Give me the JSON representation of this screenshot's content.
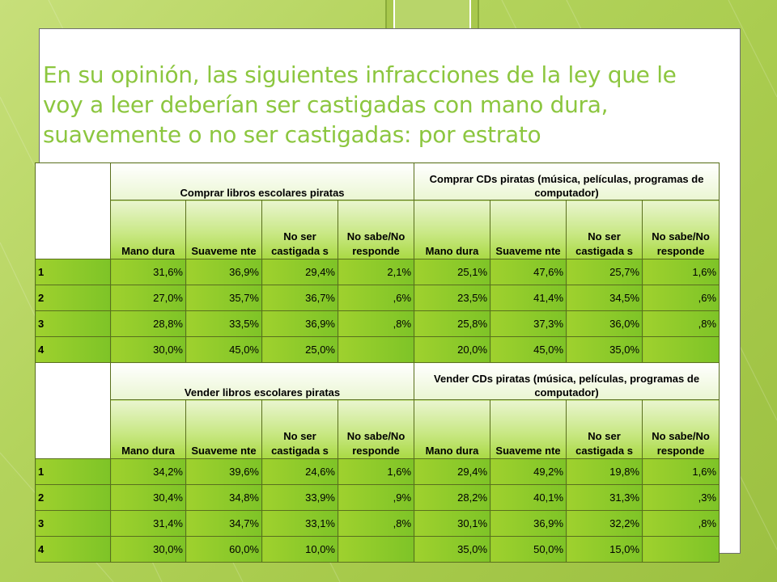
{
  "title_lines": [
    "En su opinión, las siguientes infracciones de la ley que le",
    "voy a leer deberían ser castigadas con mano dura,",
    "suavemente o no ser castigadas: por estrato"
  ],
  "colors": {
    "title": "#8cc63f",
    "row_fill": "#8cc82a",
    "slide_bg": "#ffffff",
    "page_bg": "#b3d35c"
  },
  "table1": {
    "group_a": "Comprar libros escolares piratas",
    "group_b": "Comprar CDs piratas (música, películas, programas de computador)",
    "cols": [
      "Mano dura",
      "Suaveme nte",
      "No ser castigada s",
      "No sabe/No responde",
      "Mano dura",
      "Suaveme nte",
      "No ser castigada s",
      "No sabe/No responde"
    ],
    "rows": [
      {
        "label": "1",
        "v": [
          "31,6%",
          "36,9%",
          "29,4%",
          "2,1%",
          "25,1%",
          "47,6%",
          "25,7%",
          "1,6%"
        ]
      },
      {
        "label": "2",
        "v": [
          "27,0%",
          "35,7%",
          "36,7%",
          ",6%",
          "23,5%",
          "41,4%",
          "34,5%",
          ",6%"
        ]
      },
      {
        "label": "3",
        "v": [
          "28,8%",
          "33,5%",
          "36,9%",
          ",8%",
          "25,8%",
          "37,3%",
          "36,0%",
          ",8%"
        ]
      },
      {
        "label": "4",
        "v": [
          "30,0%",
          "45,0%",
          "25,0%",
          "",
          "20,0%",
          "45,0%",
          "35,0%",
          ""
        ]
      }
    ]
  },
  "table2": {
    "group_a": "Vender libros escolares piratas",
    "group_b": "Vender CDs piratas (música, películas, programas de computador)",
    "cols": [
      "Mano dura",
      "Suaveme nte",
      "No ser castigada s",
      "No sabe/No responde",
      "Mano dura",
      "Suaveme nte",
      "No ser castigada s",
      "No sabe/No responde"
    ],
    "rows": [
      {
        "label": "1",
        "v": [
          "34,2%",
          "39,6%",
          "24,6%",
          "1,6%",
          "29,4%",
          "49,2%",
          "19,8%",
          "1,6%"
        ]
      },
      {
        "label": "2",
        "v": [
          "30,4%",
          "34,8%",
          "33,9%",
          ",9%",
          "28,2%",
          "40,1%",
          "31,3%",
          ",3%"
        ]
      },
      {
        "label": "3",
        "v": [
          "31,4%",
          "34,7%",
          "33,1%",
          ",8%",
          "30,1%",
          "36,9%",
          "32,2%",
          ",8%"
        ]
      },
      {
        "label": "4",
        "v": [
          "30,0%",
          "60,0%",
          "10,0%",
          "",
          "35,0%",
          "50,0%",
          "15,0%",
          ""
        ]
      }
    ]
  }
}
